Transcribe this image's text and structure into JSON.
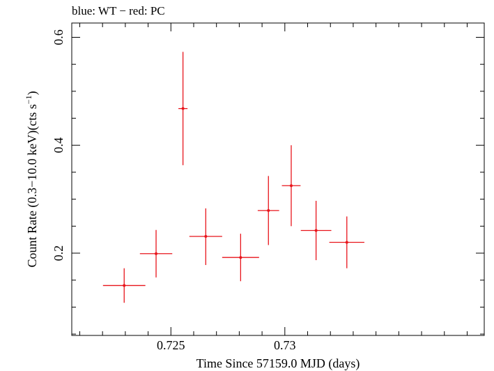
{
  "chart_data": {
    "type": "scatter",
    "title": "blue: WT − red: PC",
    "xlabel": "Time Since 57159.0 MJD (days)",
    "ylabel_main": "Count Rate (0.3−10.0 keV)(cts s",
    "ylabel_sup": "−1",
    "ylabel_end": ")",
    "xlim": [
      0.72065,
      0.73875
    ],
    "ylim": [
      0.0475,
      0.6265
    ],
    "x_ticks": [
      {
        "value": 0.725,
        "label": "0.725"
      },
      {
        "value": 0.73,
        "label": "0.73"
      }
    ],
    "y_ticks": [
      {
        "value": 0.2,
        "label": "0.2"
      },
      {
        "value": 0.4,
        "label": "0.4"
      },
      {
        "value": 0.6,
        "label": "0.6"
      }
    ],
    "x_minor_step": 0.001,
    "y_minor_step": 0.05,
    "grid": false,
    "series": [
      {
        "color": "#e8141b",
        "points": [
          {
            "x": 0.72295,
            "y": 0.14,
            "xerr": 0.00093,
            "yerr_low": 0.032,
            "yerr_high": 0.032
          },
          {
            "x": 0.72435,
            "y": 0.199,
            "xerr": 0.00071,
            "yerr_low": 0.044,
            "yerr_high": 0.044
          },
          {
            "x": 0.72553,
            "y": 0.468,
            "xerr": 0.0002,
            "yerr_low": 0.105,
            "yerr_high": 0.105
          },
          {
            "x": 0.72653,
            "y": 0.231,
            "xerr": 0.00072,
            "yerr_low": 0.053,
            "yerr_high": 0.052
          },
          {
            "x": 0.72806,
            "y": 0.192,
            "xerr": 0.00081,
            "yerr_low": 0.044,
            "yerr_high": 0.044
          },
          {
            "x": 0.72928,
            "y": 0.279,
            "xerr": 0.00047,
            "yerr_low": 0.064,
            "yerr_high": 0.064
          },
          {
            "x": 0.73028,
            "y": 0.325,
            "xerr": 0.00041,
            "yerr_low": 0.075,
            "yerr_high": 0.075
          },
          {
            "x": 0.73137,
            "y": 0.242,
            "xerr": 0.00067,
            "yerr_low": 0.055,
            "yerr_high": 0.055
          },
          {
            "x": 0.73272,
            "y": 0.22,
            "xerr": 0.00077,
            "yerr_low": 0.048,
            "yerr_high": 0.048
          }
        ]
      }
    ]
  }
}
